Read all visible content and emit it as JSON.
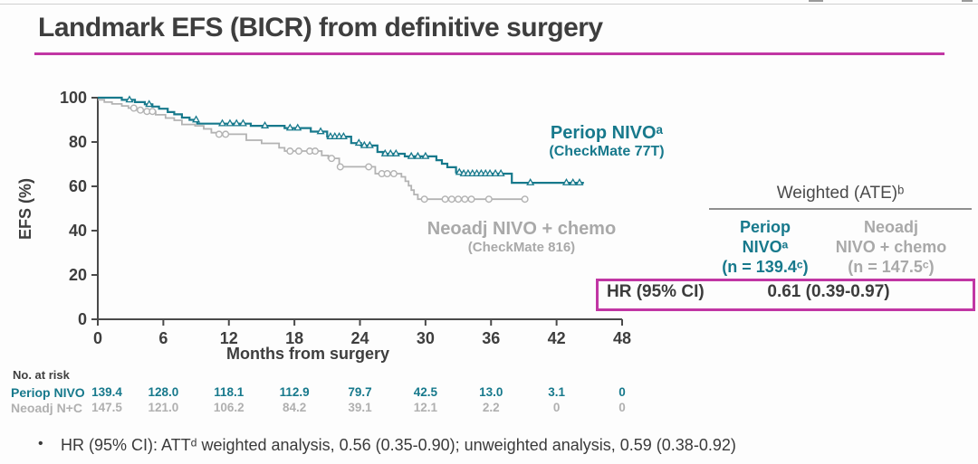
{
  "slide": {
    "title": "Landmark EFS (BICR) from definitive surgery",
    "footnote_bullet": "•",
    "footnote": "HR (95% CI): ATTᵈ weighted analysis, 0.56 (0.35-0.90); unweighted analysis, 0.59 (0.38-0.92)"
  },
  "colors": {
    "teal": "#17798c",
    "gray_curve": "#b3b3b3",
    "gray_text": "#a9a9a9",
    "magenta": "#c136a4",
    "dark": "#3e3e3e",
    "axis": "#4a4a4a"
  },
  "chart_data": {
    "type": "line",
    "subtype": "kaplan-meier-step",
    "title": "",
    "xlabel": "Months from surgery",
    "ylabel": "EFS (%)",
    "xlim": [
      0,
      48
    ],
    "xticks": [
      0,
      6,
      12,
      18,
      24,
      30,
      36,
      42,
      48
    ],
    "ylim": [
      0,
      100
    ],
    "yticks": [
      0,
      20,
      40,
      60,
      80,
      100
    ],
    "grid": false,
    "legend_position": "on-chart",
    "series": [
      {
        "name": "Periop NIVO (CheckMate 77T)",
        "label1": "Periop NIVOᵃ",
        "label2": "(CheckMate 77T)",
        "color": "#17798c",
        "marker": "triangle",
        "steps": [
          [
            0,
            100
          ],
          [
            2.2,
            99
          ],
          [
            3.4,
            98
          ],
          [
            4.3,
            97
          ],
          [
            5.0,
            96
          ],
          [
            5.6,
            95
          ],
          [
            6.4,
            93.5
          ],
          [
            7.0,
            92.5
          ],
          [
            7.7,
            91
          ],
          [
            8.4,
            90
          ],
          [
            9.1,
            88.3
          ],
          [
            14.0,
            87.3
          ],
          [
            17.1,
            86.3
          ],
          [
            19.5,
            84.7
          ],
          [
            21.0,
            82.4
          ],
          [
            23.2,
            79.5
          ],
          [
            24.1,
            78.4
          ],
          [
            25.6,
            75.5
          ],
          [
            26.1,
            74.7
          ],
          [
            28.1,
            73.5
          ],
          [
            31.0,
            71.8
          ],
          [
            31.5,
            70.2
          ],
          [
            32.0,
            68.6
          ],
          [
            32.8,
            66.3
          ],
          [
            33.3,
            65.7
          ],
          [
            37.9,
            61.6
          ],
          [
            44.5,
            61.6
          ]
        ],
        "censor_months": [
          2.9,
          4.7,
          9.0,
          11.4,
          12.1,
          12.7,
          13.3,
          15.3,
          17.6,
          18.3,
          20.4,
          21.3,
          21.7,
          22.1,
          22.5,
          23.9,
          24.4,
          24.9,
          26.3,
          26.8,
          27.3,
          28.7,
          29.3,
          30.0,
          33.1,
          33.5,
          33.9,
          34.3,
          34.7,
          35.1,
          35.5,
          35.9,
          36.4,
          36.9,
          39.6,
          42.9,
          43.5,
          44.1
        ]
      },
      {
        "name": "Neoadj NIVO + chemo (CheckMate 816)",
        "label1": "Neoadj NIVO + chemo",
        "label2": "(CheckMate 816)",
        "color": "#b3b3b3",
        "marker": "circle",
        "steps": [
          [
            0,
            99
          ],
          [
            0.6,
            98
          ],
          [
            1.3,
            97.2
          ],
          [
            2.2,
            96.3
          ],
          [
            2.8,
            95.3
          ],
          [
            3.4,
            94.4
          ],
          [
            4.5,
            93.8
          ],
          [
            5.3,
            92.3
          ],
          [
            6.2,
            90.8
          ],
          [
            7.0,
            89.8
          ],
          [
            7.7,
            87.9
          ],
          [
            8.9,
            87.3
          ],
          [
            9.7,
            85.9
          ],
          [
            10.4,
            84.2
          ],
          [
            10.9,
            83.5
          ],
          [
            13.6,
            80.8
          ],
          [
            15.0,
            79.4
          ],
          [
            16.6,
            77.4
          ],
          [
            17.1,
            75.9
          ],
          [
            20.5,
            73.9
          ],
          [
            21.1,
            72.6
          ],
          [
            22.1,
            68.8
          ],
          [
            25.4,
            65.7
          ],
          [
            27.8,
            64.3
          ],
          [
            28.15,
            62.3
          ],
          [
            28.45,
            60.3
          ],
          [
            28.7,
            58.3
          ],
          [
            28.95,
            56.3
          ],
          [
            29.3,
            54.2
          ],
          [
            39.4,
            54.2
          ]
        ],
        "censor_months": [
          3.3,
          3.9,
          4.5,
          5.0,
          11.1,
          11.7,
          17.6,
          18.4,
          19.4,
          19.9,
          21.4,
          22.2,
          24.8,
          26.0,
          26.5,
          27.1,
          29.9,
          31.8,
          32.4,
          33.0,
          33.6,
          34.2,
          35.8,
          39.1
        ]
      }
    ],
    "at_risk": {
      "title": "No. at risk",
      "rows": [
        {
          "label": "Periop NIVO",
          "color": "#17798c",
          "values": [
            "139.4",
            "128.0",
            "118.1",
            "112.9",
            "79.7",
            "42.5",
            "13.0",
            "3.1",
            "0"
          ]
        },
        {
          "label": "Neoadj N+C",
          "color": "#b0b0b0",
          "values": [
            "147.5",
            "121.0",
            "106.2",
            "84.2",
            "39.1",
            "12.1",
            "2.2",
            "0",
            "0"
          ]
        }
      ]
    }
  },
  "right_table": {
    "header": "Weighted (ATE)ᵇ",
    "columns": [
      {
        "lines": [
          "Periop",
          "NIVOᵃ",
          "(n = 139.4ᶜ)"
        ],
        "color": "#17798c"
      },
      {
        "lines": [
          "Neoadj",
          "NIVO + chemo",
          "(n = 147.5ᶜ)"
        ],
        "color": "#a9a9a9"
      }
    ],
    "hr_label": "HR (95% CI)",
    "hr_value": "0.61 (0.39-0.97)"
  }
}
